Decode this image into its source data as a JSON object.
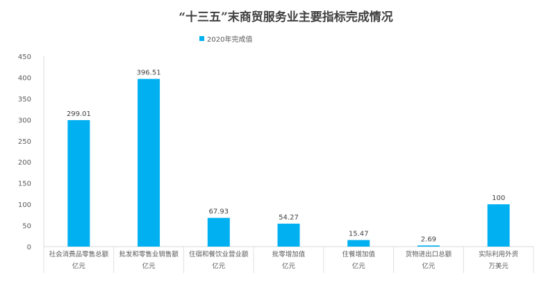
{
  "chart_data": {
    "type": "bar",
    "title": "“十三五”末商贸服务业主要指标完成情况",
    "legend": {
      "label": "2020年完成值",
      "position": "top-left"
    },
    "categories": [
      [
        "社会消费品零售总额",
        "亿元"
      ],
      [
        "批发和零售业销售额",
        "亿元"
      ],
      [
        "住宿和餐饮业营业额",
        "亿元"
      ],
      [
        "批零增加值",
        "亿元"
      ],
      [
        "住餐增加值",
        "亿元"
      ],
      [
        "货物进出口总额",
        "亿元"
      ],
      [
        "实际利用外资",
        "万美元"
      ]
    ],
    "series": [
      {
        "name": "2020年完成值",
        "values": [
          299.01,
          396.51,
          67.93,
          54.27,
          15.47,
          2.69,
          100
        ],
        "labels": [
          "299.01",
          "396.51",
          "67.93",
          "54.27",
          "15.47",
          "2.69",
          "100"
        ],
        "color": "#00b0f0"
      }
    ],
    "yticks": [
      "0",
      "50",
      "100",
      "150",
      "200",
      "250",
      "300",
      "350",
      "400",
      "450"
    ],
    "ylim": [
      0,
      450
    ],
    "grid": false
  }
}
